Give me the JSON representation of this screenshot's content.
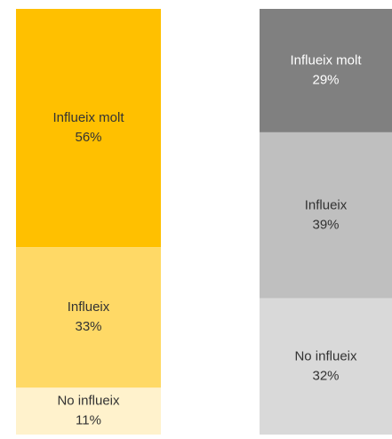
{
  "chart_data": [
    {
      "type": "stacked_bar",
      "categories": [
        "Influeix molt",
        "Influeix",
        "No influeix"
      ],
      "values": [
        56,
        33,
        11
      ],
      "value_labels": [
        "56%",
        "33%",
        "11%"
      ],
      "colors": [
        "#ffc000",
        "#ffd966",
        "#fff2cc"
      ]
    },
    {
      "type": "stacked_bar",
      "categories": [
        "Influeix molt",
        "Influeix",
        "No influeix"
      ],
      "values": [
        29,
        39,
        32
      ],
      "value_labels": [
        "29%",
        "39%",
        "32%"
      ],
      "colors": [
        "#808080",
        "#bfbfbf",
        "#d9d9d9"
      ]
    }
  ]
}
